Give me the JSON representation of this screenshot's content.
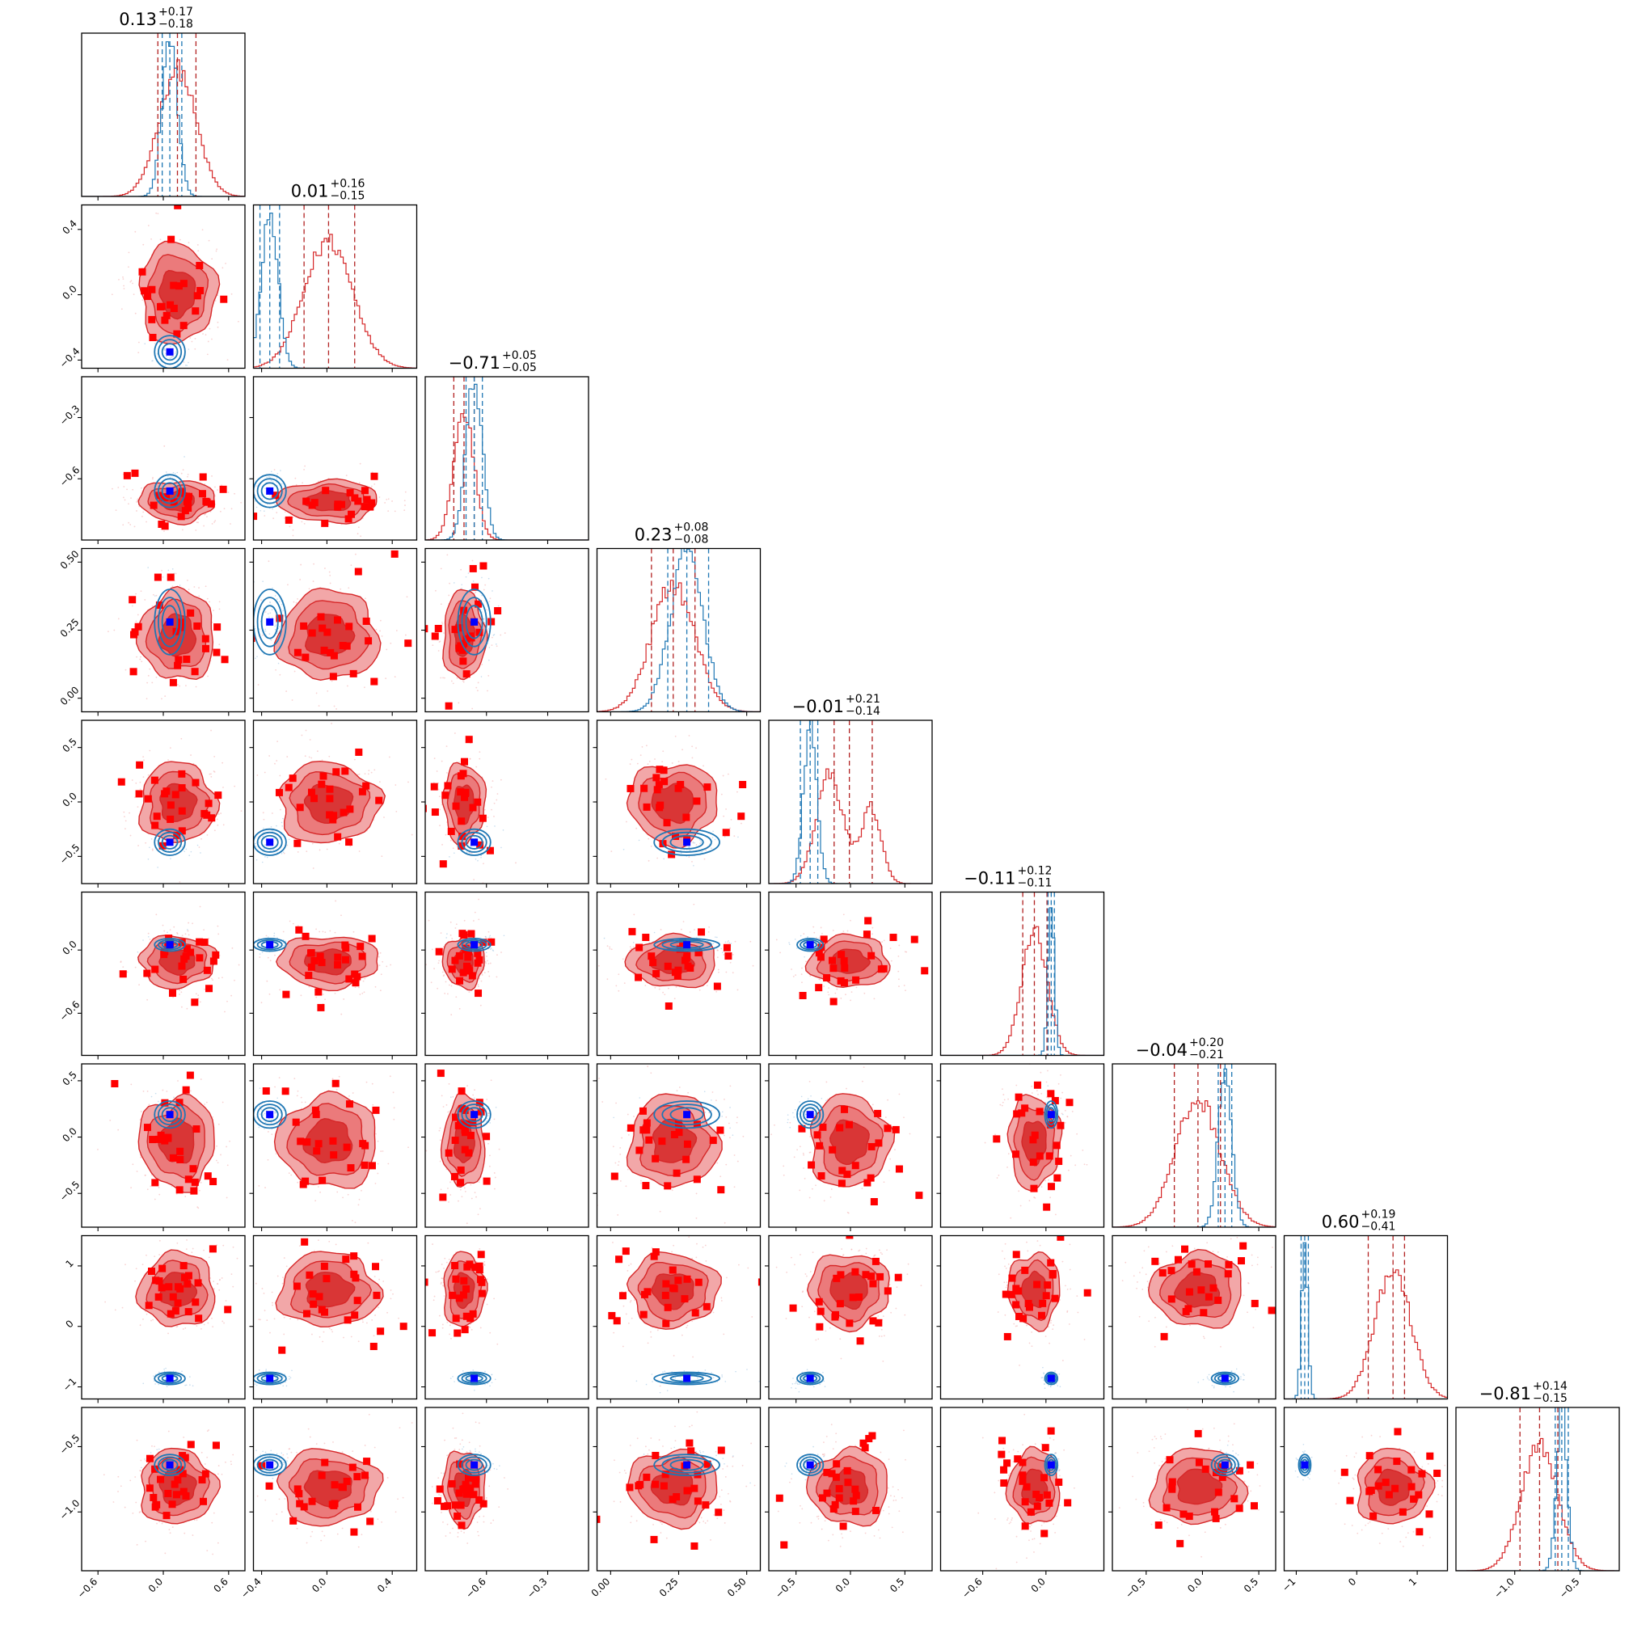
{
  "chart_data": {
    "type": "corner",
    "n_params": 9,
    "colors": {
      "red": "#d62728",
      "red_fill_outer": "#f2a7a8",
      "red_fill_inner": "#d93636",
      "red_marker": "#ff0000",
      "blue": "#1f77b4",
      "blue_marker": "#0000ff"
    },
    "titles": [
      {
        "value": "0.13",
        "plus": "+0.17",
        "minus": "−0.18"
      },
      {
        "value": "0.01",
        "plus": "+0.16",
        "minus": "−0.15"
      },
      {
        "value": "−0.71",
        "plus": "+0.05",
        "minus": "−0.05"
      },
      {
        "value": "0.23",
        "plus": "+0.08",
        "minus": "−0.08"
      },
      {
        "value": "−0.01",
        "plus": "+0.21",
        "minus": "−0.14"
      },
      {
        "value": "−0.11",
        "plus": "+0.12",
        "minus": "−0.11"
      },
      {
        "value": "−0.04",
        "plus": "+0.20",
        "minus": "−0.21"
      },
      {
        "value": "0.60",
        "plus": "+0.19",
        "minus": "−0.41"
      },
      {
        "value": "−0.81",
        "plus": "+0.14",
        "minus": "−0.15"
      }
    ],
    "params": [
      {
        "range": [
          -0.75,
          0.75
        ],
        "ticks": [
          -0.6,
          0.0,
          0.6
        ],
        "tick_labels": [
          "−0.6",
          "0.0",
          "0.6"
        ],
        "red_center": 0.13,
        "red_sd": 0.17,
        "red_q": [
          -0.05,
          0.13,
          0.3
        ],
        "blue_center": 0.06,
        "blue_sd": 0.07,
        "blue_q": [
          -0.01,
          0.06,
          0.17
        ],
        "truth": 0.06
      },
      {
        "range": [
          -0.45,
          0.55
        ],
        "ticks": [
          -0.4,
          0.0,
          0.4
        ],
        "tick_labels": [
          "−0.4",
          "0.0",
          "0.4"
        ],
        "red_center": 0.01,
        "red_sd": 0.15,
        "red_q": [
          -0.14,
          0.01,
          0.17
        ],
        "blue_center": -0.35,
        "blue_sd": 0.05,
        "blue_q": [
          -0.41,
          -0.35,
          -0.29
        ],
        "truth": -0.35
      },
      {
        "range": [
          -0.9,
          -0.1
        ],
        "ticks": [
          -0.6,
          -0.3
        ],
        "tick_labels": [
          "−0.6",
          "−0.3"
        ],
        "red_center": -0.71,
        "red_sd": 0.05,
        "red_q": [
          -0.76,
          -0.71,
          -0.66
        ],
        "blue_center": -0.66,
        "blue_sd": 0.04,
        "blue_q": [
          -0.7,
          -0.66,
          -0.62
        ],
        "truth": -0.66
      },
      {
        "range": [
          -0.05,
          0.55
        ],
        "ticks": [
          0.0,
          0.25,
          0.5
        ],
        "tick_labels": [
          "0.00",
          "0.25",
          "0.50"
        ],
        "red_center": 0.23,
        "red_sd": 0.08,
        "red_q": [
          0.15,
          0.23,
          0.31
        ],
        "blue_center": 0.28,
        "blue_sd": 0.06,
        "blue_q": [
          0.21,
          0.28,
          0.36
        ],
        "truth": 0.28
      },
      {
        "range": [
          -0.75,
          0.75
        ],
        "ticks": [
          -0.5,
          0.0,
          0.5
        ],
        "tick_labels": [
          "−0.5",
          "0.0",
          "0.5"
        ],
        "red_center": -0.01,
        "red_sd": 0.18,
        "red_q": [
          -0.15,
          -0.01,
          0.2
        ],
        "blue_center": -0.37,
        "blue_sd": 0.06,
        "blue_q": [
          -0.46,
          -0.37,
          -0.3
        ],
        "truth": -0.37
      },
      {
        "range": [
          -1.0,
          0.55
        ],
        "ticks": [
          -0.6,
          0.0
        ],
        "tick_labels": [
          "−0.6",
          "0.0"
        ],
        "red_center": -0.11,
        "red_sd": 0.12,
        "red_q": [
          -0.22,
          -0.11,
          0.01
        ],
        "blue_center": 0.05,
        "blue_sd": 0.03,
        "blue_q": [
          0.02,
          0.05,
          0.08
        ],
        "truth": 0.05
      },
      {
        "range": [
          -0.8,
          0.65
        ],
        "ticks": [
          -0.5,
          0.0,
          0.5
        ],
        "tick_labels": [
          "−0.5",
          "0.0",
          "0.5"
        ],
        "red_center": -0.04,
        "red_sd": 0.2,
        "red_q": [
          -0.25,
          -0.04,
          0.16
        ],
        "blue_center": 0.2,
        "blue_sd": 0.06,
        "blue_q": [
          0.14,
          0.2,
          0.26
        ],
        "truth": 0.2
      },
      {
        "range": [
          -1.2,
          1.5
        ],
        "ticks": [
          -1,
          0,
          1
        ],
        "tick_labels": [
          "−1",
          "0",
          "1"
        ],
        "red_center": 0.6,
        "red_sd": 0.3,
        "red_q": [
          0.19,
          0.6,
          0.79
        ],
        "blue_center": -0.86,
        "blue_sd": 0.05,
        "blue_q": [
          -0.92,
          -0.86,
          -0.8
        ],
        "truth": -0.86
      },
      {
        "range": [
          -1.45,
          -0.2
        ],
        "ticks": [
          -1.0,
          -0.5
        ],
        "tick_labels": [
          "−1.0",
          "−0.5"
        ],
        "red_center": -0.81,
        "red_sd": 0.14,
        "red_q": [
          -0.96,
          -0.81,
          -0.67
        ],
        "blue_center": -0.64,
        "blue_sd": 0.04,
        "blue_q": [
          -0.69,
          -0.64,
          -0.59
        ],
        "truth": -0.64
      }
    ],
    "legend": "none",
    "grid": false
  }
}
